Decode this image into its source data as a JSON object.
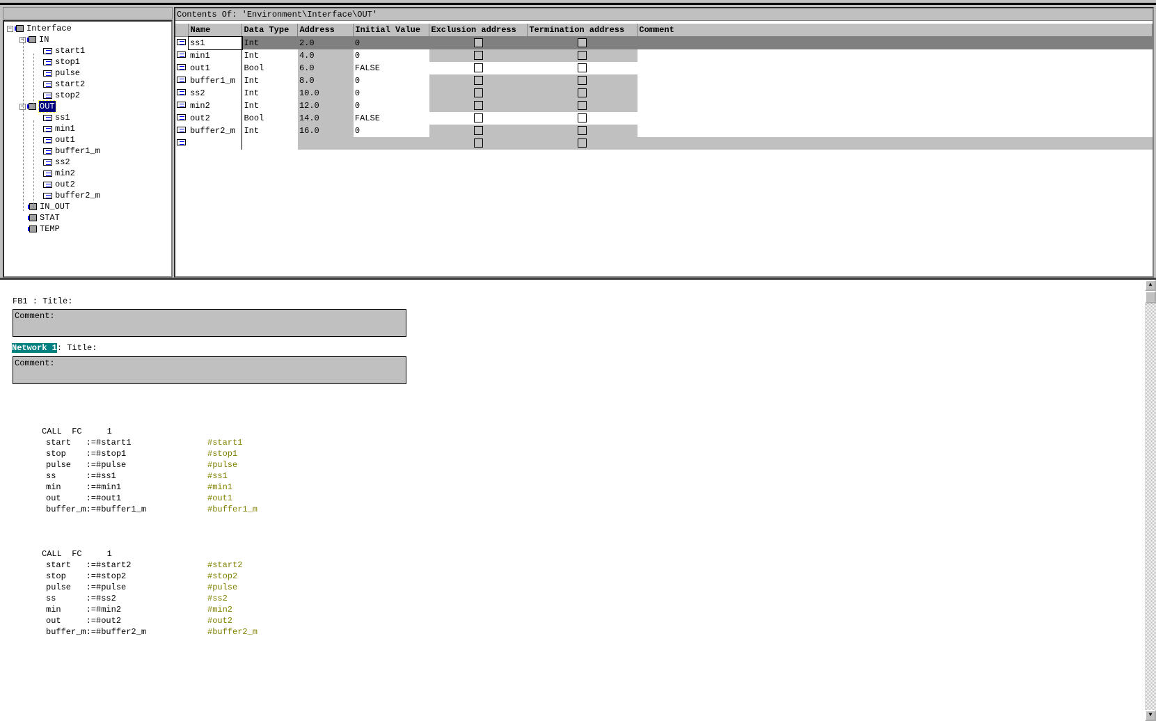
{
  "tree": {
    "root": "Interface",
    "in": {
      "label": "IN",
      "items": [
        "start1",
        "stop1",
        "pulse",
        "start2",
        "stop2"
      ]
    },
    "out": {
      "label": "OUT",
      "items": [
        "ss1",
        "min1",
        "out1",
        "buffer1_m",
        "ss2",
        "min2",
        "out2",
        "buffer2_m"
      ]
    },
    "others": [
      "IN_OUT",
      "STAT",
      "TEMP"
    ]
  },
  "contents": {
    "caption": "Contents Of: 'Environment\\Interface\\OUT'",
    "columns": [
      "Name",
      "Data Type",
      "Address",
      "Initial Value",
      "Exclusion address",
      "Termination address",
      "Comment"
    ],
    "rows": [
      {
        "name": "ss1",
        "type": "Int",
        "address": "2.0",
        "initial": "0",
        "excl": false,
        "term": false,
        "selected": true
      },
      {
        "name": "min1",
        "type": "Int",
        "address": "4.0",
        "initial": "0",
        "excl": false,
        "term": false
      },
      {
        "name": "out1",
        "type": "Bool",
        "address": "6.0",
        "initial": "FALSE",
        "excl": false,
        "term": false
      },
      {
        "name": "buffer1_m",
        "type": "Int",
        "address": "8.0",
        "initial": "0",
        "excl": false,
        "term": false
      },
      {
        "name": "ss2",
        "type": "Int",
        "address": "10.0",
        "initial": "0",
        "excl": false,
        "term": false
      },
      {
        "name": "min2",
        "type": "Int",
        "address": "12.0",
        "initial": "0",
        "excl": false,
        "term": false
      },
      {
        "name": "out2",
        "type": "Bool",
        "address": "14.0",
        "initial": "FALSE",
        "excl": false,
        "term": false
      },
      {
        "name": "buffer2_m",
        "type": "Int",
        "address": "16.0",
        "initial": "0",
        "excl": false,
        "term": false
      }
    ]
  },
  "editor": {
    "block_title": "FB1 : Title:",
    "comment_label": "Comment:",
    "network_label": "Network 1",
    "network_title": ": Title:",
    "calls": [
      {
        "header": "CALL  FC     1",
        "params": [
          [
            "start   :=#start1",
            "#start1"
          ],
          [
            "stop    :=#stop1",
            "#stop1"
          ],
          [
            "pulse   :=#pulse",
            "#pulse"
          ],
          [
            "ss      :=#ss1",
            "#ss1"
          ],
          [
            "min     :=#min1",
            "#min1"
          ],
          [
            "out     :=#out1",
            "#out1"
          ],
          [
            "buffer_m:=#buffer1_m",
            "#buffer1_m"
          ]
        ]
      },
      {
        "header": "CALL  FC     1",
        "params": [
          [
            "start   :=#start2",
            "#start2"
          ],
          [
            "stop    :=#stop2",
            "#stop2"
          ],
          [
            "pulse   :=#pulse",
            "#pulse"
          ],
          [
            "ss      :=#ss2",
            "#ss2"
          ],
          [
            "min     :=#min2",
            "#min2"
          ],
          [
            "out     :=#out2",
            "#out2"
          ],
          [
            "buffer_m:=#buffer2_m",
            "#buffer2_m"
          ]
        ]
      }
    ]
  },
  "colors": {
    "selection": "#000080",
    "network_badge": "#008080",
    "comment_text": "#808000",
    "panel": "#c0c0c0"
  }
}
